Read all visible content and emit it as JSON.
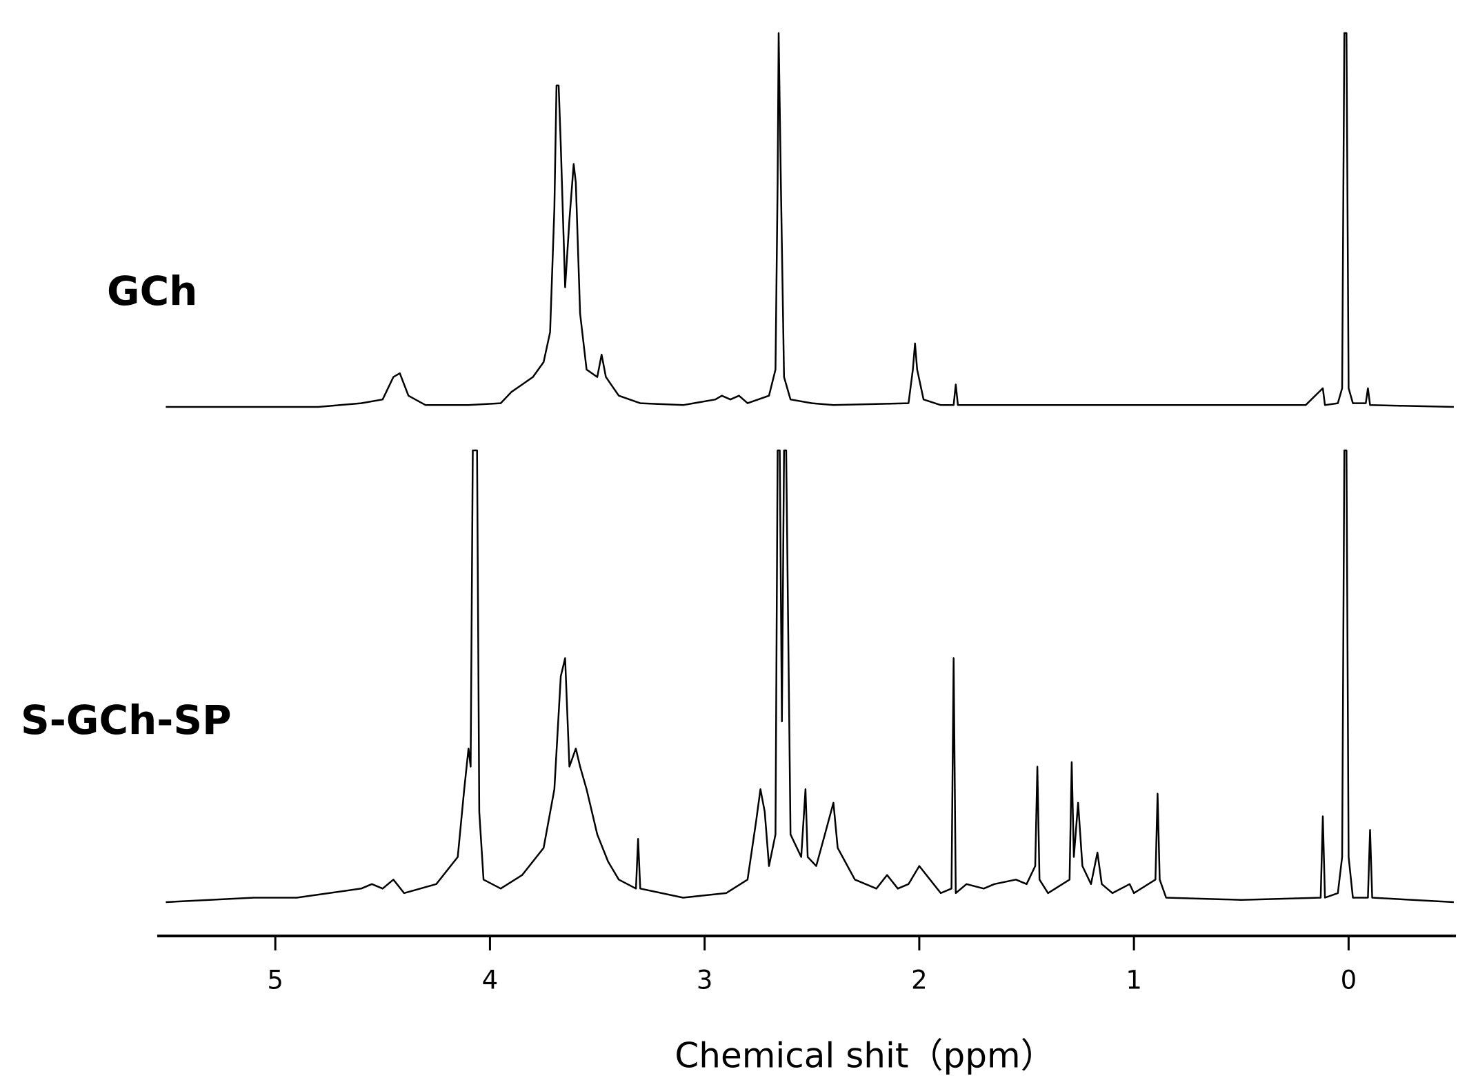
{
  "chart_data": [
    {
      "type": "line",
      "series": [
        {
          "name": "GCh",
          "color": "#000000",
          "values": [
            0,
            0,
            1,
            2,
            8,
            9,
            3,
            0.5,
            0.5,
            1,
            4,
            6,
            8,
            12,
            20,
            53,
            86,
            86,
            70,
            32,
            50,
            65,
            60,
            25,
            10,
            8,
            14,
            8,
            3,
            1,
            0.5,
            2,
            3,
            2,
            3,
            1,
            3,
            10,
            60,
            100,
            60,
            8,
            2,
            1,
            0.5,
            1,
            10,
            17,
            10,
            2,
            0.5,
            0.5,
            6,
            0.5,
            0.5,
            5,
            0.5,
            1,
            5,
            100,
            100,
            5,
            1,
            1,
            5,
            0.5,
            0
          ]
        }
      ],
      "x": [
        5.51,
        4.8,
        4.6,
        4.5,
        4.45,
        4.42,
        4.38,
        4.3,
        4.1,
        3.95,
        3.9,
        3.85,
        3.8,
        3.75,
        3.72,
        3.7,
        3.69,
        3.68,
        3.67,
        3.65,
        3.63,
        3.61,
        3.6,
        3.58,
        3.55,
        3.5,
        3.48,
        3.46,
        3.4,
        3.3,
        3.1,
        2.95,
        2.92,
        2.88,
        2.84,
        2.8,
        2.7,
        2.67,
        2.66,
        2.655,
        2.645,
        2.63,
        2.6,
        2.5,
        2.4,
        2.05,
        2.03,
        2.02,
        2.01,
        1.98,
        1.9,
        1.84,
        1.83,
        1.82,
        0.2,
        0.12,
        0.11,
        0.05,
        0.03,
        0.02,
        0.01,
        0.0,
        -0.02,
        -0.08,
        -0.09,
        -0.1,
        -0.49
      ],
      "xlim": [
        5.55,
        -0.5
      ],
      "ylim": [
        0,
        100
      ]
    },
    {
      "type": "line",
      "series": [
        {
          "name": "S-GCh-SP",
          "color": "#000000",
          "values": [
            0,
            1,
            1,
            3,
            4,
            3,
            5,
            2,
            4,
            10,
            25,
            34,
            30,
            100,
            100,
            100,
            20,
            5,
            3,
            6,
            12,
            25,
            50,
            54,
            30,
            34,
            30,
            25,
            15,
            9,
            5,
            3,
            14,
            3,
            1,
            2,
            5,
            18,
            25,
            20,
            8,
            15,
            100,
            100,
            40,
            100,
            100,
            15,
            10,
            25,
            10,
            8,
            15,
            22,
            12,
            5,
            3,
            6,
            3,
            4,
            8,
            5,
            2,
            3,
            54,
            2,
            4,
            3,
            4,
            5,
            4,
            8,
            30,
            5,
            2,
            5,
            31,
            10,
            22,
            8,
            4,
            11,
            4,
            2,
            4,
            2,
            5,
            24,
            5,
            1,
            0.5,
            1,
            19,
            1,
            2,
            10,
            100,
            100,
            10,
            1,
            1,
            16,
            1,
            0
          ]
        }
      ],
      "x": [
        5.51,
        5.1,
        4.9,
        4.6,
        4.55,
        4.5,
        4.45,
        4.4,
        4.25,
        4.15,
        4.12,
        4.1,
        4.09,
        4.08,
        4.07,
        4.06,
        4.05,
        4.03,
        3.95,
        3.85,
        3.75,
        3.7,
        3.67,
        3.65,
        3.63,
        3.6,
        3.58,
        3.55,
        3.5,
        3.45,
        3.4,
        3.32,
        3.31,
        3.3,
        3.1,
        2.9,
        2.8,
        2.76,
        2.74,
        2.72,
        2.7,
        2.67,
        2.66,
        2.65,
        2.64,
        2.63,
        2.62,
        2.6,
        2.55,
        2.53,
        2.52,
        2.48,
        2.44,
        2.4,
        2.38,
        2.3,
        2.2,
        2.15,
        2.1,
        2.05,
        2.0,
        1.95,
        1.9,
        1.85,
        1.84,
        1.83,
        1.78,
        1.7,
        1.65,
        1.55,
        1.5,
        1.46,
        1.45,
        1.44,
        1.4,
        1.3,
        1.29,
        1.28,
        1.26,
        1.24,
        1.2,
        1.17,
        1.15,
        1.1,
        1.02,
        1.0,
        0.9,
        0.89,
        0.88,
        0.85,
        0.5,
        0.13,
        0.12,
        0.11,
        0.05,
        0.03,
        0.02,
        0.01,
        0.0,
        -0.02,
        -0.09,
        -0.1,
        -0.11,
        -0.49
      ],
      "xlim": [
        5.55,
        -0.5
      ],
      "ylim": [
        0,
        100
      ],
      "xticks": [
        5,
        4,
        3,
        2,
        1,
        0
      ],
      "xlabel": "Chemical shit（ppm）"
    }
  ]
}
